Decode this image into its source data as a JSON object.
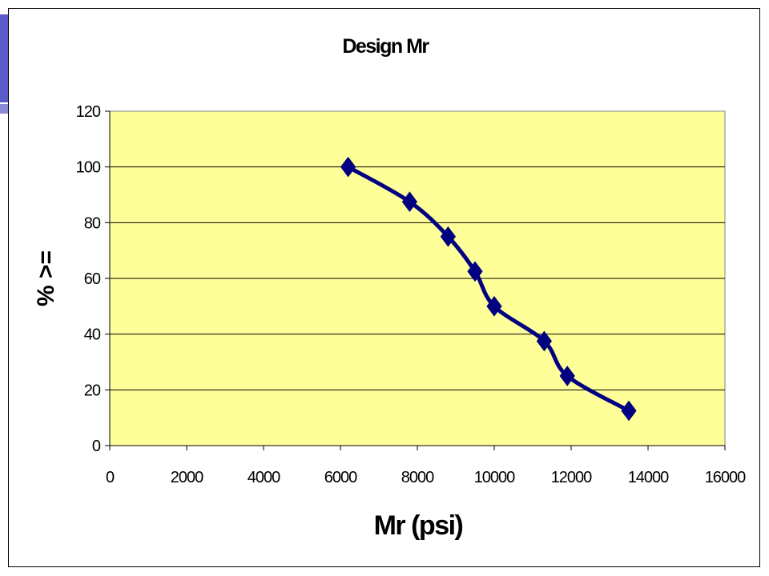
{
  "chart_data": {
    "type": "line",
    "title": "Design Mr",
    "xlabel": "Mr (psi)",
    "ylabel": "% >=",
    "xlim": [
      0,
      16000
    ],
    "ylim": [
      0,
      120
    ],
    "x_ticks": [
      0,
      2000,
      4000,
      6000,
      8000,
      10000,
      12000,
      14000,
      16000
    ],
    "y_ticks": [
      0,
      20,
      40,
      60,
      80,
      100,
      120
    ],
    "grid": "horizontal",
    "legend": "none",
    "smoothed": true,
    "marker": "diamond",
    "series": [
      {
        "x": [
          6200,
          7800,
          8800,
          9500,
          10000,
          11300,
          11900,
          13500
        ],
        "y": [
          100,
          87.5,
          75,
          62.5,
          50,
          37.5,
          25,
          12.5
        ],
        "color": "#000080"
      }
    ]
  },
  "colors": {
    "plot_background": "#ffff99",
    "line": "#000080",
    "accent_bar": "#5a5ac8"
  }
}
